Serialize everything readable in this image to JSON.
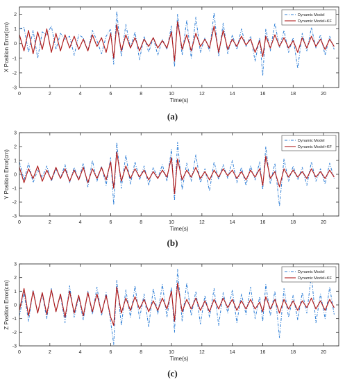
{
  "figure": {
    "panel_labels": [
      "(a)",
      "(b)",
      "(c)"
    ]
  },
  "colors": {
    "dynamic_model": "#2f7fd6",
    "dynamic_model_kf": "#b01e1e",
    "axis": "#333333",
    "grid": "#e6e6e6"
  },
  "chart_data": [
    {
      "type": "line",
      "xlabel": "Time(s)",
      "ylabel": "X Position Error(cm)",
      "xlim": [
        0,
        21
      ],
      "ylim": [
        -3,
        2.5
      ],
      "xticks": [
        0,
        2,
        4,
        6,
        8,
        10,
        12,
        14,
        16,
        18,
        20
      ],
      "yticks": [
        -3,
        -2,
        -1,
        0,
        1,
        2
      ],
      "legend_position": "top-right",
      "series": [
        {
          "name": "Dynamic Model",
          "style": "dashed-dotted",
          "x": [
            0,
            0.3,
            0.6,
            0.9,
            1.2,
            1.5,
            1.8,
            2.1,
            2.4,
            2.7,
            3.0,
            3.3,
            3.6,
            3.9,
            4.2,
            4.5,
            4.8,
            5.1,
            5.4,
            5.7,
            6.0,
            6.2,
            6.4,
            6.7,
            7.0,
            7.3,
            7.6,
            7.9,
            8.2,
            8.5,
            8.8,
            9.1,
            9.4,
            9.7,
            10.0,
            10.2,
            10.4,
            10.7,
            11.0,
            11.3,
            11.6,
            11.9,
            12.2,
            12.5,
            12.8,
            13.1,
            13.4,
            13.7,
            14.0,
            14.3,
            14.6,
            14.9,
            15.2,
            15.5,
            15.8,
            16.0,
            16.2,
            16.5,
            16.8,
            17.1,
            17.4,
            17.7,
            18.0,
            18.3,
            18.6,
            18.9,
            19.2,
            19.5,
            19.8,
            20.1,
            20.4,
            20.7
          ],
          "values": [
            1.0,
            1.1,
            -0.6,
            0.9,
            -1.0,
            0.8,
            0.6,
            1.2,
            -0.4,
            0.7,
            0.3,
            0.5,
            -0.8,
            0.6,
            0.4,
            -0.5,
            0.9,
            0.2,
            -0.7,
            0.5,
            1.0,
            -1.4,
            2.2,
            -0.9,
            1.3,
            -0.3,
            0.8,
            -1.1,
            0.5,
            -0.6,
            0.4,
            -0.8,
            0.3,
            -0.4,
            1.2,
            -1.6,
            2.0,
            -0.8,
            1.6,
            -1.0,
            1.8,
            -0.6,
            0.4,
            -0.5,
            2.1,
            -0.9,
            1.4,
            -0.7,
            0.6,
            -0.4,
            1.0,
            -0.2,
            0.5,
            -1.2,
            0.4,
            -2.2,
            1.0,
            -0.5,
            1.4,
            -0.3,
            0.9,
            -0.6,
            0.4,
            -1.7,
            0.7,
            -0.5,
            1.1,
            -0.3,
            0.6,
            -0.8,
            0.5,
            -0.4
          ]
        },
        {
          "name": "Dynamic Model+KF",
          "style": "solid",
          "x": [
            0,
            0.3,
            0.6,
            0.9,
            1.2,
            1.5,
            1.8,
            2.1,
            2.4,
            2.7,
            3.0,
            3.3,
            3.6,
            3.9,
            4.2,
            4.5,
            4.8,
            5.1,
            5.4,
            5.7,
            6.0,
            6.2,
            6.4,
            6.7,
            7.0,
            7.3,
            7.6,
            7.9,
            8.2,
            8.5,
            8.8,
            9.1,
            9.4,
            9.7,
            10.0,
            10.2,
            10.4,
            10.7,
            11.0,
            11.3,
            11.6,
            11.9,
            12.2,
            12.5,
            12.8,
            13.1,
            13.4,
            13.7,
            14.0,
            14.3,
            14.6,
            14.9,
            15.2,
            15.5,
            15.8,
            16.0,
            16.2,
            16.5,
            16.8,
            17.1,
            17.4,
            17.7,
            18.0,
            18.3,
            18.6,
            18.9,
            19.2,
            19.5,
            19.8,
            20.1,
            20.4,
            20.7
          ],
          "values": [
            0.6,
            -0.5,
            0.9,
            -0.7,
            0.8,
            -0.4,
            1.0,
            -0.6,
            0.7,
            -0.5,
            0.6,
            -0.3,
            0.5,
            -0.4,
            0.3,
            -0.5,
            0.6,
            -0.2,
            0.4,
            -0.6,
            0.7,
            -1.0,
            1.3,
            -0.5,
            0.6,
            -0.3,
            0.4,
            -0.5,
            0.3,
            -0.2,
            0.4,
            -0.3,
            0.2,
            -0.3,
            0.8,
            -1.2,
            1.5,
            -0.4,
            0.6,
            -0.5,
            0.7,
            -0.2,
            0.3,
            -0.3,
            1.2,
            -0.6,
            0.9,
            -0.4,
            0.3,
            -0.2,
            0.5,
            -0.1,
            0.3,
            -0.6,
            0.2,
            -0.9,
            0.5,
            -0.3,
            0.6,
            -0.2,
            0.4,
            -0.3,
            0.2,
            -0.6,
            0.4,
            -0.3,
            0.5,
            -0.2,
            0.3,
            -0.4,
            0.3,
            -0.2
          ]
        }
      ]
    },
    {
      "type": "line",
      "xlabel": "Time(s)",
      "ylabel": "Y Position Error(cm)",
      "xlim": [
        0,
        21
      ],
      "ylim": [
        -3,
        3
      ],
      "xticks": [
        0,
        2,
        4,
        6,
        8,
        10,
        12,
        14,
        16,
        18,
        20
      ],
      "yticks": [
        -3,
        -2,
        -1,
        0,
        1,
        2,
        3
      ],
      "legend_position": "top-right",
      "series": [
        {
          "name": "Dynamic Model",
          "style": "dashed-dotted",
          "x": [
            0,
            0.3,
            0.6,
            0.9,
            1.2,
            1.5,
            1.8,
            2.1,
            2.4,
            2.7,
            3.0,
            3.3,
            3.6,
            3.9,
            4.2,
            4.5,
            4.8,
            5.1,
            5.4,
            5.7,
            6.0,
            6.2,
            6.4,
            6.7,
            7.0,
            7.3,
            7.6,
            7.9,
            8.2,
            8.5,
            8.8,
            9.1,
            9.4,
            9.7,
            10.0,
            10.2,
            10.4,
            10.7,
            11.0,
            11.3,
            11.6,
            11.9,
            12.2,
            12.5,
            12.8,
            13.1,
            13.4,
            13.7,
            14.0,
            14.3,
            14.6,
            14.9,
            15.2,
            15.5,
            15.8,
            16.0,
            16.2,
            16.5,
            16.8,
            17.1,
            17.4,
            17.7,
            18.0,
            18.3,
            18.6,
            18.9,
            19.2,
            19.5,
            19.8,
            20.1,
            20.4,
            20.7
          ],
          "values": [
            0.9,
            -0.4,
            0.8,
            -0.6,
            0.3,
            -0.2,
            0.6,
            -0.5,
            0.4,
            -0.3,
            0.7,
            -0.6,
            0.5,
            -0.4,
            0.8,
            -0.9,
            1.0,
            -0.5,
            0.6,
            -0.8,
            1.2,
            -2.2,
            2.3,
            -1.0,
            1.4,
            -0.7,
            0.9,
            -0.4,
            0.6,
            -0.8,
            0.5,
            -0.3,
            0.7,
            -0.5,
            1.8,
            -1.9,
            2.3,
            -1.1,
            0.8,
            -0.5,
            1.4,
            -0.6,
            0.4,
            -1.2,
            0.9,
            -0.4,
            0.7,
            -0.3,
            1.0,
            -0.6,
            0.5,
            -0.8,
            0.6,
            -0.4,
            0.9,
            -1.1,
            2.0,
            -0.7,
            0.8,
            -2.3,
            1.1,
            -0.5,
            0.6,
            -0.4,
            0.5,
            -0.8,
            0.9,
            -0.5,
            0.4,
            -0.7,
            0.8,
            -0.3
          ]
        },
        {
          "name": "Dynamic Model+KF",
          "style": "solid",
          "x": [
            0,
            0.3,
            0.6,
            0.9,
            1.2,
            1.5,
            1.8,
            2.1,
            2.4,
            2.7,
            3.0,
            3.3,
            3.6,
            3.9,
            4.2,
            4.5,
            4.8,
            5.1,
            5.4,
            5.7,
            6.0,
            6.2,
            6.4,
            6.7,
            7.0,
            7.3,
            7.6,
            7.9,
            8.2,
            8.5,
            8.8,
            9.1,
            9.4,
            9.7,
            10.0,
            10.2,
            10.4,
            10.7,
            11.0,
            11.3,
            11.6,
            11.9,
            12.2,
            12.5,
            12.8,
            13.1,
            13.4,
            13.7,
            14.0,
            14.3,
            14.6,
            14.9,
            15.2,
            15.5,
            15.8,
            16.0,
            16.2,
            16.5,
            16.8,
            17.1,
            17.4,
            17.7,
            18.0,
            18.3,
            18.6,
            18.9,
            19.2,
            19.5,
            19.8,
            20.1,
            20.4,
            20.7
          ],
          "values": [
            0.5,
            -0.6,
            0.4,
            -0.3,
            0.6,
            -0.5,
            0.3,
            -0.4,
            0.5,
            -0.3,
            0.4,
            -0.5,
            0.3,
            -0.4,
            0.5,
            -0.6,
            0.4,
            -0.3,
            0.5,
            -0.4,
            0.9,
            -1.0,
            1.6,
            -0.5,
            0.6,
            -0.3,
            0.4,
            -0.2,
            0.3,
            -0.4,
            0.2,
            -0.3,
            0.3,
            -0.2,
            1.2,
            -1.4,
            1.1,
            -0.4,
            0.3,
            -0.2,
            0.5,
            -0.3,
            0.2,
            -0.4,
            0.3,
            -0.2,
            0.4,
            -0.1,
            0.3,
            -0.3,
            0.2,
            -0.4,
            0.3,
            -0.2,
            0.4,
            -0.8,
            1.3,
            -0.3,
            0.2,
            -0.9,
            0.4,
            -0.2,
            0.3,
            -0.2,
            0.2,
            -0.3,
            0.4,
            -0.2,
            0.2,
            -0.3,
            0.3,
            -0.2
          ]
        }
      ]
    },
    {
      "type": "line",
      "xlabel": "Time(s)",
      "ylabel": "Z Position Error(cm)",
      "xlim": [
        0,
        21
      ],
      "ylim": [
        -3,
        3
      ],
      "xticks": [
        0,
        2,
        4,
        6,
        8,
        10,
        12,
        14,
        16,
        18,
        20
      ],
      "yticks": [
        -3,
        -2,
        -1,
        0,
        1,
        2,
        3
      ],
      "legend_position": "top-right",
      "series": [
        {
          "name": "Dynamic Model",
          "style": "dashed-dotted",
          "x": [
            0,
            0.3,
            0.6,
            0.9,
            1.2,
            1.5,
            1.8,
            2.1,
            2.4,
            2.7,
            3.0,
            3.3,
            3.6,
            3.9,
            4.2,
            4.5,
            4.8,
            5.1,
            5.4,
            5.7,
            6.0,
            6.2,
            6.4,
            6.7,
            7.0,
            7.3,
            7.6,
            7.9,
            8.2,
            8.5,
            8.8,
            9.1,
            9.4,
            9.7,
            10.0,
            10.2,
            10.4,
            10.7,
            11.0,
            11.3,
            11.6,
            11.9,
            12.2,
            12.5,
            12.8,
            13.1,
            13.4,
            13.7,
            14.0,
            14.3,
            14.6,
            14.9,
            15.2,
            15.5,
            15.8,
            16.0,
            16.2,
            16.5,
            16.8,
            17.1,
            17.4,
            17.7,
            18.0,
            18.3,
            18.6,
            18.9,
            19.2,
            19.5,
            19.8,
            20.1,
            20.4,
            20.7
          ],
          "values": [
            -0.8,
            0.9,
            -1.2,
            1.1,
            -0.6,
            0.8,
            -1.0,
            1.2,
            -0.5,
            0.7,
            -1.3,
            1.4,
            -0.9,
            0.6,
            -1.1,
            1.0,
            -0.7,
            1.3,
            -0.8,
            0.9,
            -1.2,
            -2.9,
            1.8,
            -1.5,
            1.1,
            -0.9,
            1.4,
            -1.0,
            0.8,
            -1.6,
            1.2,
            -0.7,
            1.5,
            -0.9,
            1.3,
            -2.0,
            2.6,
            -1.2,
            1.6,
            -0.8,
            1.0,
            -1.4,
            0.7,
            -0.9,
            1.2,
            -1.5,
            0.9,
            -0.6,
            1.1,
            -1.3,
            0.8,
            -0.7,
            1.3,
            -1.0,
            0.6,
            -1.2,
            1.5,
            -0.8,
            1.0,
            -2.4,
            1.2,
            -0.9,
            0.7,
            -1.1,
            0.9,
            -0.6,
            2.2,
            -1.3,
            0.8,
            -1.0,
            1.3,
            -0.7
          ]
        },
        {
          "name": "Dynamic Model+KF",
          "style": "solid",
          "x": [
            0,
            0.3,
            0.6,
            0.9,
            1.2,
            1.5,
            1.8,
            2.1,
            2.4,
            2.7,
            3.0,
            3.3,
            3.6,
            3.9,
            4.2,
            4.5,
            4.8,
            5.1,
            5.4,
            5.7,
            6.0,
            6.2,
            6.4,
            6.7,
            7.0,
            7.3,
            7.6,
            7.9,
            8.2,
            8.5,
            8.8,
            9.1,
            9.4,
            9.7,
            10.0,
            10.2,
            10.4,
            10.7,
            11.0,
            11.3,
            11.6,
            11.9,
            12.2,
            12.5,
            12.8,
            13.1,
            13.4,
            13.7,
            14.0,
            14.3,
            14.6,
            14.9,
            15.2,
            15.5,
            15.8,
            16.0,
            16.2,
            16.5,
            16.8,
            17.1,
            17.4,
            17.7,
            18.0,
            18.3,
            18.6,
            18.9,
            19.2,
            19.5,
            19.8,
            20.1,
            20.4,
            20.7
          ],
          "values": [
            -0.4,
            1.2,
            -0.8,
            1.0,
            -0.6,
            0.9,
            -0.7,
            1.1,
            -0.5,
            0.8,
            -0.9,
            1.0,
            -0.6,
            0.7,
            -0.8,
            0.9,
            -0.5,
            0.8,
            -0.6,
            0.7,
            -0.9,
            -1.5,
            1.3,
            -0.6,
            0.5,
            -0.4,
            0.6,
            -0.3,
            0.4,
            -0.5,
            0.3,
            -0.4,
            0.5,
            -0.3,
            1.0,
            -1.2,
            1.6,
            -0.5,
            0.4,
            -0.3,
            0.5,
            -0.4,
            0.3,
            -0.5,
            0.4,
            -0.3,
            0.5,
            -0.2,
            0.4,
            -0.4,
            0.3,
            -0.3,
            0.4,
            -0.3,
            0.2,
            -0.5,
            0.6,
            -0.3,
            0.4,
            -0.6,
            0.4,
            -0.3,
            0.3,
            -0.4,
            0.3,
            -0.2,
            0.5,
            -0.3,
            0.3,
            -0.4,
            0.4,
            -0.2
          ]
        }
      ]
    }
  ]
}
